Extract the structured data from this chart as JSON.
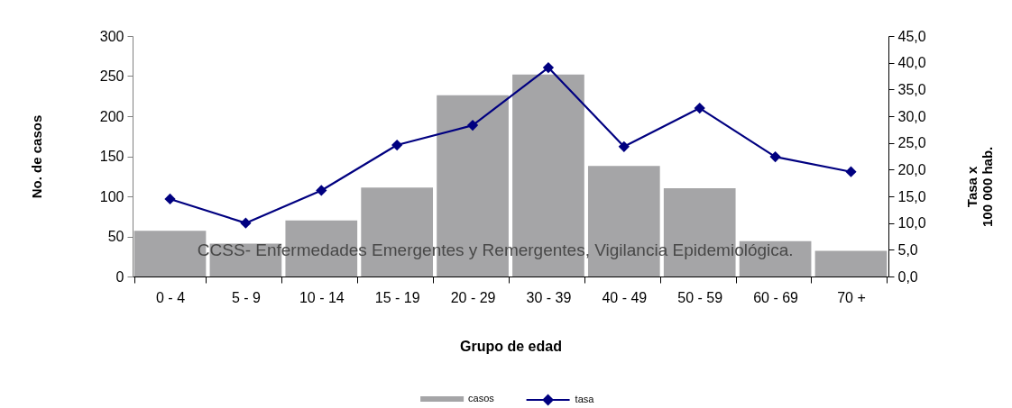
{
  "chart_data": {
    "type": "bar",
    "xlabel": "Grupo de edad",
    "ylabel": "No. de casos",
    "y2label": "Tasa x\n100 000 hab.",
    "categories": [
      "0 - 4",
      "5 - 9",
      "10 - 14",
      "15 - 19",
      "20 - 29",
      "30 - 39",
      "40 - 49",
      "50 - 59",
      "60 - 69",
      "70 +"
    ],
    "series": [
      {
        "name": "casos",
        "color": "#a5a5a7",
        "values": [
          57,
          41,
          70,
          111,
          226,
          252,
          138,
          110,
          44,
          32
        ]
      },
      {
        "name": "tasa",
        "type": "line",
        "axis": "y2",
        "color": "#000080",
        "marker": "diamond",
        "line_style": "solid",
        "values": [
          14.5,
          10.0,
          16.1,
          24.6,
          28.3,
          39.1,
          24.3,
          31.5,
          22.4,
          19.6
        ]
      }
    ],
    "ylim": [
      0,
      300
    ],
    "yticks": [
      0,
      50,
      100,
      150,
      200,
      250,
      300
    ],
    "y2lim": [
      0,
      45
    ],
    "y2ticks": [
      {
        "value": 0,
        "label": "0,0"
      },
      {
        "value": 5,
        "label": "5,0"
      },
      {
        "value": 10,
        "label": "10,0"
      },
      {
        "value": 15,
        "label": "15,0"
      },
      {
        "value": 20,
        "label": "20,0"
      },
      {
        "value": 25,
        "label": "25,0"
      },
      {
        "value": 30,
        "label": "30,0"
      },
      {
        "value": 35,
        "label": "35,0"
      },
      {
        "value": 40,
        "label": "40,0"
      },
      {
        "value": 45,
        "label": "45,0"
      }
    ],
    "grid": false,
    "legend": "bottom",
    "annotations": [
      "CCSS- Enfermedades Emergentes y Remergentes, Vigilancia Epidemiológica."
    ]
  }
}
